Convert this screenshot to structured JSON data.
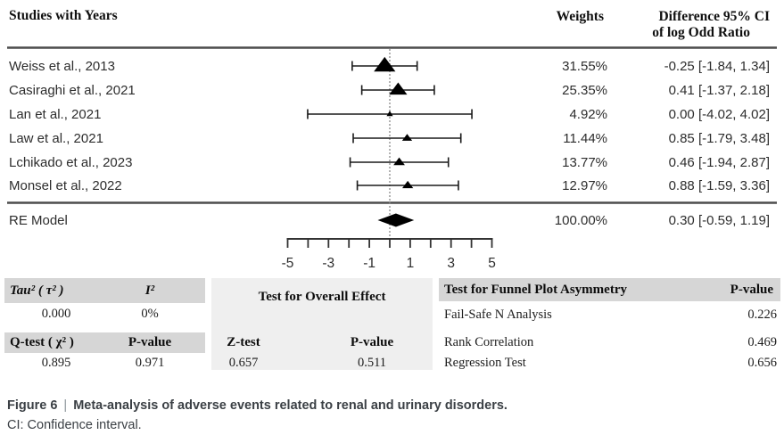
{
  "colors": {
    "table_header_bg": "#d6d6d6",
    "panel_bg": "#efefef",
    "caption_text": "#3b4045",
    "marker": "#000000",
    "line": "#1a1a1a",
    "separator": "#4d4d4d",
    "dotted_reference": "#888888"
  },
  "header": {
    "studies_col": "Studies with Years",
    "weights_col": "Weights",
    "difference_col_line1": "Difference 95% CI",
    "difference_col_line2": "of log Odd Ratio"
  },
  "chart_data": {
    "type": "forest",
    "title": "Meta-analysis of adverse events related to renal and urinary disorders",
    "x_axis": {
      "min": -5,
      "max": 5,
      "tick_values": [
        -5,
        -4,
        -3,
        -2,
        -1,
        0,
        1,
        2,
        3,
        4,
        5
      ],
      "labeled_ticks": [
        {
          "v": -5,
          "label": "-5"
        },
        {
          "v": -3,
          "label": "-3"
        },
        {
          "v": -1,
          "label": "-1"
        },
        {
          "v": 1,
          "label": "1"
        },
        {
          "v": 3,
          "label": "3"
        },
        {
          "v": 5,
          "label": "5"
        }
      ],
      "reference_line": 0
    },
    "studies": [
      {
        "name": "Weiss et al., 2013",
        "weight_label": "31.55%",
        "weight_pct": 31.55,
        "estimate": -0.25,
        "ci_low": -1.84,
        "ci_high": 1.34,
        "ci_label": "-0.25 [-1.84, 1.34]"
      },
      {
        "name": "Casiraghi et al., 2021",
        "weight_label": "25.35%",
        "weight_pct": 25.35,
        "estimate": 0.41,
        "ci_low": -1.37,
        "ci_high": 2.18,
        "ci_label": "0.41 [-1.37, 2.18]"
      },
      {
        "name": "Lan et al., 2021",
        "weight_label": "4.92%",
        "weight_pct": 4.92,
        "estimate": 0.0,
        "ci_low": -4.02,
        "ci_high": 4.02,
        "ci_label": "0.00 [-4.02, 4.02]"
      },
      {
        "name": "Law et al., 2021",
        "weight_label": "11.44%",
        "weight_pct": 11.44,
        "estimate": 0.85,
        "ci_low": -1.79,
        "ci_high": 3.48,
        "ci_label": "0.85 [-1.79, 3.48]"
      },
      {
        "name": "Lchikado et al., 2023",
        "weight_label": "13.77%",
        "weight_pct": 13.77,
        "estimate": 0.46,
        "ci_low": -1.94,
        "ci_high": 2.87,
        "ci_label": "0.46 [-1.94, 2.87]"
      },
      {
        "name": "Monsel et al., 2022",
        "weight_label": "12.97%",
        "weight_pct": 12.97,
        "estimate": 0.88,
        "ci_low": -1.59,
        "ci_high": 3.36,
        "ci_label": "0.88 [-1.59, 3.36]"
      }
    ],
    "summary": {
      "name": "RE Model",
      "weight_label": "100.00%",
      "weight_pct": 100.0,
      "estimate": 0.3,
      "ci_low": -0.59,
      "ci_high": 1.19,
      "ci_label": "0.30 [-0.59, 1.19]"
    }
  },
  "stats": {
    "heterogeneity": {
      "header1_col1": "Tau² ( τ² )",
      "header1_col2": "I²",
      "value1_col1": "0.000",
      "value1_col2": "0%",
      "header2_col1": "Q-test ( χ² )",
      "header2_col2": "P-value",
      "value2_col1": "0.895",
      "value2_col2": "0.971"
    },
    "overall_effect": {
      "title": "Test for Overall Effect",
      "col1_header": "Z-test",
      "col2_header": "P-value",
      "col1_value": "0.657",
      "col2_value": "0.511"
    },
    "funnel": {
      "title": "Test for Funnel Plot Asymmetry",
      "value_header": "P-value",
      "rows": [
        {
          "label": "Fail-Safe N Analysis",
          "value": "0.226"
        },
        {
          "label": "Rank Correlation",
          "value": "0.469"
        },
        {
          "label": "Regression Test",
          "value": "0.656"
        }
      ]
    }
  },
  "caption": {
    "figure_label": "Figure 6",
    "separator": "|",
    "title": "Meta-analysis of adverse events related to renal and urinary disorders.",
    "note": "CI: Confidence interval."
  }
}
